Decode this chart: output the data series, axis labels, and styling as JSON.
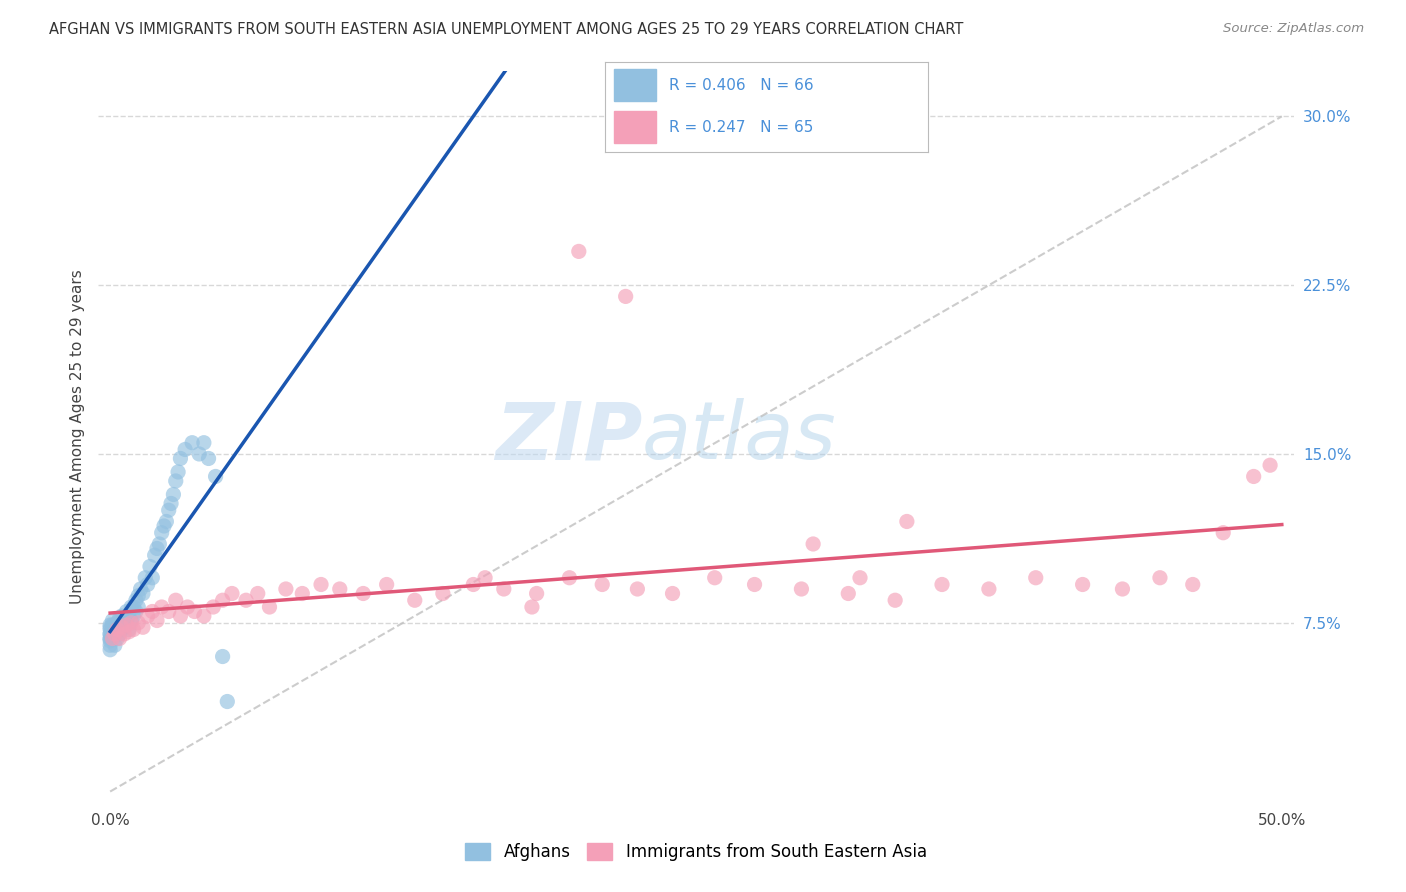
{
  "title": "AFGHAN VS IMMIGRANTS FROM SOUTH EASTERN ASIA UNEMPLOYMENT AMONG AGES 25 TO 29 YEARS CORRELATION CHART",
  "source": "Source: ZipAtlas.com",
  "ylabel": "Unemployment Among Ages 25 to 29 years",
  "xlim": [
    0.0,
    0.5
  ],
  "ylim": [
    -0.005,
    0.32
  ],
  "xticks": [
    0.0,
    0.1,
    0.2,
    0.3,
    0.4,
    0.5
  ],
  "xticklabels": [
    "0.0%",
    "",
    "",
    "",
    "",
    "50.0%"
  ],
  "ytick_positions": [
    0.075,
    0.15,
    0.225,
    0.3
  ],
  "ytick_labels": [
    "7.5%",
    "15.0%",
    "22.5%",
    "30.0%"
  ],
  "watermark_zip": "ZIP",
  "watermark_atlas": "atlas",
  "afghans_color": "#92c0e0",
  "sea_color": "#f4a0b8",
  "trendline_afghan_color": "#1a56b0",
  "trendline_sea_color": "#e05878",
  "trendline_ref_color": "#c0c0c0",
  "afghans_x": [
    0.0,
    0.0,
    0.0,
    0.0,
    0.0,
    0.0,
    0.0,
    0.0,
    0.0,
    0.0,
    0.001,
    0.001,
    0.001,
    0.001,
    0.002,
    0.002,
    0.002,
    0.003,
    0.003,
    0.003,
    0.004,
    0.004,
    0.004,
    0.005,
    0.005,
    0.005,
    0.006,
    0.006,
    0.007,
    0.007,
    0.008,
    0.008,
    0.009,
    0.009,
    0.01,
    0.01,
    0.011,
    0.011,
    0.012,
    0.012,
    0.013,
    0.014,
    0.015,
    0.016,
    0.017,
    0.018,
    0.019,
    0.02,
    0.021,
    0.022,
    0.023,
    0.024,
    0.025,
    0.026,
    0.027,
    0.028,
    0.029,
    0.03,
    0.032,
    0.035,
    0.038,
    0.04,
    0.042,
    0.045,
    0.048,
    0.05
  ],
  "afghans_y": [
    0.068,
    0.07,
    0.072,
    0.074,
    0.065,
    0.068,
    0.07,
    0.073,
    0.063,
    0.067,
    0.069,
    0.072,
    0.074,
    0.076,
    0.065,
    0.07,
    0.073,
    0.068,
    0.072,
    0.075,
    0.07,
    0.074,
    0.077,
    0.072,
    0.075,
    0.078,
    0.073,
    0.077,
    0.075,
    0.08,
    0.072,
    0.078,
    0.076,
    0.082,
    0.078,
    0.082,
    0.08,
    0.085,
    0.082,
    0.087,
    0.09,
    0.088,
    0.095,
    0.092,
    0.1,
    0.095,
    0.105,
    0.108,
    0.11,
    0.115,
    0.118,
    0.12,
    0.125,
    0.128,
    0.132,
    0.138,
    0.142,
    0.148,
    0.152,
    0.155,
    0.15,
    0.155,
    0.148,
    0.14,
    0.06,
    0.04
  ],
  "sea_x": [
    0.001,
    0.002,
    0.003,
    0.004,
    0.005,
    0.006,
    0.007,
    0.008,
    0.009,
    0.01,
    0.012,
    0.014,
    0.016,
    0.018,
    0.02,
    0.022,
    0.025,
    0.028,
    0.03,
    0.033,
    0.036,
    0.04,
    0.044,
    0.048,
    0.052,
    0.058,
    0.063,
    0.068,
    0.075,
    0.082,
    0.09,
    0.098,
    0.108,
    0.118,
    0.13,
    0.142,
    0.155,
    0.168,
    0.182,
    0.196,
    0.21,
    0.225,
    0.24,
    0.258,
    0.275,
    0.295,
    0.315,
    0.335,
    0.355,
    0.375,
    0.395,
    0.415,
    0.432,
    0.448,
    0.462,
    0.475,
    0.488,
    0.495,
    0.3,
    0.32,
    0.34,
    0.16,
    0.18,
    0.2,
    0.22
  ],
  "sea_y": [
    0.068,
    0.07,
    0.072,
    0.068,
    0.073,
    0.07,
    0.074,
    0.071,
    0.075,
    0.072,
    0.075,
    0.073,
    0.078,
    0.08,
    0.076,
    0.082,
    0.08,
    0.085,
    0.078,
    0.082,
    0.08,
    0.078,
    0.082,
    0.085,
    0.088,
    0.085,
    0.088,
    0.082,
    0.09,
    0.088,
    0.092,
    0.09,
    0.088,
    0.092,
    0.085,
    0.088,
    0.092,
    0.09,
    0.088,
    0.095,
    0.092,
    0.09,
    0.088,
    0.095,
    0.092,
    0.09,
    0.088,
    0.085,
    0.092,
    0.09,
    0.095,
    0.092,
    0.09,
    0.095,
    0.092,
    0.115,
    0.14,
    0.145,
    0.11,
    0.095,
    0.12,
    0.095,
    0.082,
    0.24,
    0.22
  ],
  "background_color": "#ffffff",
  "grid_color": "#d8d8d8"
}
